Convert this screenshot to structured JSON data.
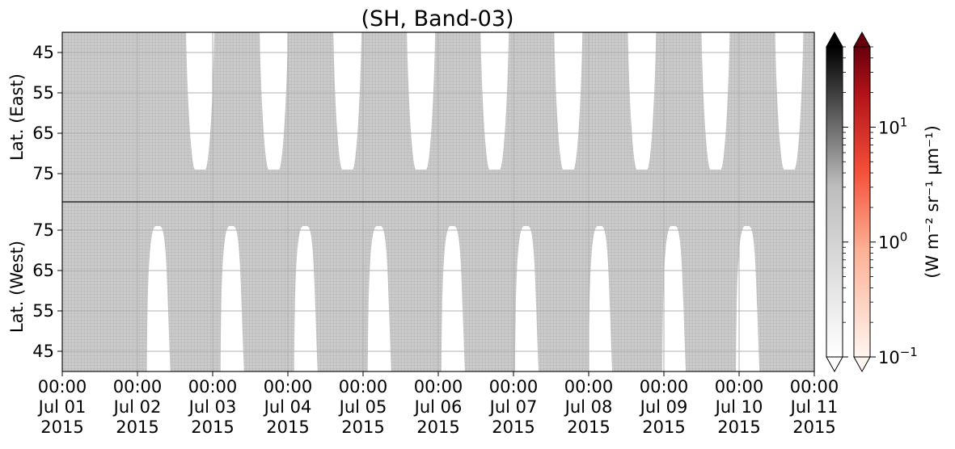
{
  "chart_data": {
    "type": "heatmap",
    "title": "(SH, Band-03)",
    "x_axis": {
      "tick_labels": [
        [
          "00:00",
          "Jul 01",
          "2015"
        ],
        [
          "00:00",
          "Jul 02",
          "2015"
        ],
        [
          "00:00",
          "Jul 03",
          "2015"
        ],
        [
          "00:00",
          "Jul 04",
          "2015"
        ],
        [
          "00:00",
          "Jul 05",
          "2015"
        ],
        [
          "00:00",
          "Jul 06",
          "2015"
        ],
        [
          "00:00",
          "Jul 07",
          "2015"
        ],
        [
          "00:00",
          "Jul 08",
          "2015"
        ],
        [
          "00:00",
          "Jul 09",
          "2015"
        ],
        [
          "00:00",
          "Jul 10",
          "2015"
        ],
        [
          "00:00",
          "Jul 11",
          "2015"
        ]
      ],
      "range": [
        "2015-07-01T00:00",
        "2015-07-11T00:00"
      ],
      "grid": true
    },
    "panels": [
      {
        "name": "east",
        "ylabel": "Lat. (East)",
        "yticks": [
          45,
          55,
          65,
          75
        ],
        "ylim": [
          40,
          82
        ],
        "y_inverted": true,
        "grid": true,
        "gap_top": 40,
        "gap_bottom": 74,
        "gaps": [
          {
            "start": "2015-07-02T15:30",
            "end": "2015-07-03T00:30"
          },
          {
            "start": "2015-07-03T15:00",
            "end": "2015-07-04T00:00"
          },
          {
            "start": "2015-07-04T14:30",
            "end": "2015-07-04T23:30"
          },
          {
            "start": "2015-07-05T14:00",
            "end": "2015-07-05T23:00"
          },
          {
            "start": "2015-07-06T13:30",
            "end": "2015-07-06T22:30"
          },
          {
            "start": "2015-07-07T13:00",
            "end": "2015-07-07T22:00"
          },
          {
            "start": "2015-07-08T12:30",
            "end": "2015-07-08T21:30"
          },
          {
            "start": "2015-07-09T12:00",
            "end": "2015-07-09T21:00"
          },
          {
            "start": "2015-07-10T11:30",
            "end": "2015-07-10T20:30"
          }
        ]
      },
      {
        "name": "west",
        "ylabel": "Lat. (West)",
        "yticks": [
          75,
          65,
          55,
          45
        ],
        "ylim": [
          82,
          40
        ],
        "y_inverted": false,
        "grid": true,
        "gap_top": 76,
        "gap_bottom": 40,
        "gaps": [
          {
            "start": "2015-07-02T03:00",
            "end": "2015-07-02T10:30"
          },
          {
            "start": "2015-07-03T02:30",
            "end": "2015-07-03T10:00"
          },
          {
            "start": "2015-07-04T02:00",
            "end": "2015-07-04T09:30"
          },
          {
            "start": "2015-07-05T01:30",
            "end": "2015-07-05T09:00"
          },
          {
            "start": "2015-07-06T01:00",
            "end": "2015-07-06T08:30"
          },
          {
            "start": "2015-07-07T00:30",
            "end": "2015-07-07T08:00"
          },
          {
            "start": "2015-07-08T00:00",
            "end": "2015-07-08T07:30"
          },
          {
            "start": "2015-07-08T23:30",
            "end": "2015-07-09T07:00"
          },
          {
            "start": "2015-07-09T23:00",
            "end": "2015-07-10T06:30"
          }
        ]
      }
    ],
    "colorbars": [
      {
        "name": "greys",
        "colors": [
          "#ffffff",
          "#000000"
        ],
        "extend": "both"
      },
      {
        "name": "reds",
        "colors": [
          "#fff5f0",
          "#67000d"
        ],
        "extend": "both",
        "scale": "log",
        "tick_labels": [
          "10",
          "10",
          "10"
        ],
        "tick_exponents": [
          "−1",
          "0",
          "1"
        ],
        "tick_values": [
          0.1,
          1,
          10
        ],
        "range": [
          0.1,
          50
        ],
        "label": "(W m⁻² sr⁻¹ μm⁻¹)"
      }
    ],
    "colors": {
      "data_fill": "#cbcbcb",
      "data_line": "#b5b5b5",
      "grid": "#b0b0b0",
      "axis": "#000000"
    }
  }
}
